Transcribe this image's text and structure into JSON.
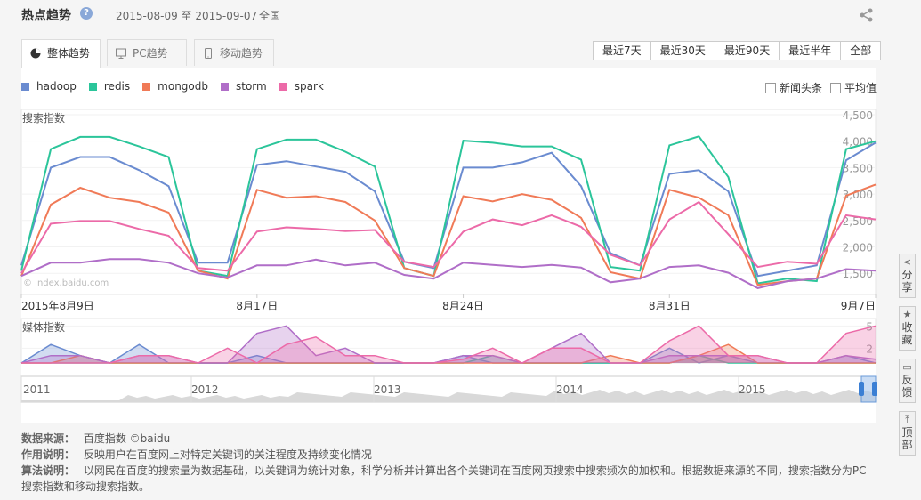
{
  "header": {
    "title": "热点趋势",
    "help_icon": "?",
    "date_range": "2015-08-09 至 2015-09-07",
    "region": "全国"
  },
  "tabs": [
    {
      "label": "整体趋势",
      "icon": "pie-icon",
      "active": true
    },
    {
      "label": "PC趋势",
      "icon": "monitor-icon",
      "active": false
    },
    {
      "label": "移动趋势",
      "icon": "mobile-icon",
      "active": false
    }
  ],
  "ranges": [
    "最近7天",
    "最近30天",
    "最近90天",
    "最近半年",
    "全部"
  ],
  "checkboxes": {
    "news": "新闻头条",
    "average": "平均值"
  },
  "colors": {
    "hadoop": "#6a8bd0",
    "redis": "#2bc59a",
    "mongodb": "#f07a57",
    "storm": "#b06ec8",
    "spark": "#ec6aa8"
  },
  "chart_data": [
    {
      "type": "line",
      "ylabel": "搜索指数",
      "ylim": [
        1100,
        4600
      ],
      "yticks": [
        "4,500",
        "4,000",
        "3,500",
        "3,000",
        "2,500",
        "2,000",
        "1,500"
      ],
      "ytick_values": [
        4500,
        4000,
        3500,
        3000,
        2500,
        2000,
        1500
      ],
      "xtick_labels": [
        "2015年8月9日",
        "8月17日",
        "8月24日",
        "8月31日",
        "9月7日"
      ],
      "xtick_index": [
        0,
        8,
        15,
        22,
        29
      ],
      "watermark": "© index.baidu.com",
      "x": [
        "08-09",
        "08-10",
        "08-11",
        "08-12",
        "08-13",
        "08-14",
        "08-15",
        "08-16",
        "08-17",
        "08-18",
        "08-19",
        "08-20",
        "08-21",
        "08-22",
        "08-23",
        "08-24",
        "08-25",
        "08-26",
        "08-27",
        "08-28",
        "08-29",
        "08-30",
        "08-31",
        "09-01",
        "09-02",
        "09-03",
        "09-04",
        "09-05",
        "09-06",
        "09-07"
      ],
      "series": [
        {
          "name": "hadoop",
          "color": "#6a8bd0",
          "values": [
            1650,
            3500,
            3700,
            3700,
            3450,
            3150,
            1700,
            1700,
            3550,
            3620,
            3520,
            3420,
            3050,
            1720,
            1600,
            3500,
            3500,
            3600,
            3780,
            3150,
            1880,
            1650,
            3380,
            3450,
            3050,
            1450,
            1550,
            1650,
            3640,
            3970
          ]
        },
        {
          "name": "redis",
          "color": "#2bc59a",
          "values": [
            1550,
            3850,
            4080,
            4080,
            3900,
            3700,
            1550,
            1450,
            3850,
            4030,
            4030,
            3800,
            3520,
            1600,
            1450,
            4010,
            3970,
            3900,
            3900,
            3650,
            1620,
            1550,
            3920,
            4090,
            3320,
            1310,
            1400,
            1350,
            3850,
            4000
          ]
        },
        {
          "name": "mongodb",
          "color": "#f07a57",
          "values": [
            1450,
            2800,
            3120,
            2930,
            2850,
            2650,
            1550,
            1400,
            3080,
            2930,
            2960,
            2850,
            2500,
            1600,
            1450,
            2960,
            2860,
            3000,
            2890,
            2550,
            1520,
            1400,
            3080,
            2930,
            2600,
            1280,
            1350,
            1400,
            2970,
            3180
          ]
        },
        {
          "name": "storm",
          "color": "#b06ec8",
          "values": [
            1450,
            1700,
            1700,
            1770,
            1770,
            1700,
            1500,
            1420,
            1650,
            1650,
            1760,
            1650,
            1700,
            1470,
            1400,
            1700,
            1660,
            1620,
            1660,
            1610,
            1330,
            1400,
            1620,
            1650,
            1510,
            1220,
            1350,
            1400,
            1580,
            1550
          ]
        },
        {
          "name": "spark",
          "color": "#ec6aa8",
          "values": [
            1500,
            2440,
            2490,
            2490,
            2340,
            2210,
            1600,
            1550,
            2290,
            2370,
            2340,
            2300,
            2320,
            1720,
            1620,
            2290,
            2520,
            2410,
            2600,
            2380,
            1850,
            1650,
            2520,
            2850,
            2240,
            1620,
            1720,
            1680,
            2600,
            2520
          ]
        }
      ]
    },
    {
      "type": "area",
      "ylabel": "媒体指数",
      "ylim": [
        0,
        6
      ],
      "yticks": [
        "5",
        "2"
      ],
      "ytick_values": [
        5,
        2
      ],
      "x": [
        "08-09",
        "08-10",
        "08-11",
        "08-12",
        "08-13",
        "08-14",
        "08-15",
        "08-16",
        "08-17",
        "08-18",
        "08-19",
        "08-20",
        "08-21",
        "08-22",
        "08-23",
        "08-24",
        "08-25",
        "08-26",
        "08-27",
        "08-28",
        "08-29",
        "08-30",
        "08-31",
        "09-01",
        "09-02",
        "09-03",
        "09-04",
        "09-05",
        "09-06",
        "09-07"
      ],
      "series": [
        {
          "name": "hadoop",
          "color": "#6a8bd0",
          "values": [
            0,
            2.5,
            1,
            0,
            2.5,
            0,
            0,
            0,
            1,
            0,
            0,
            0,
            0,
            0,
            0,
            1,
            0,
            0,
            0,
            0,
            0,
            0,
            2,
            0,
            1,
            0,
            0,
            0,
            1,
            0
          ]
        },
        {
          "name": "redis",
          "color": "#2bc59a",
          "values": [
            0,
            0,
            0,
            0,
            0,
            0,
            0,
            0,
            0,
            0,
            0,
            0,
            0,
            0,
            0,
            0,
            1,
            0,
            0,
            0,
            0,
            0,
            0,
            1,
            0,
            0,
            0,
            0,
            0,
            0
          ]
        },
        {
          "name": "mongodb",
          "color": "#f07a57",
          "values": [
            0,
            0,
            1,
            0,
            0,
            0,
            0,
            0,
            0,
            0,
            0,
            0,
            0,
            0,
            0,
            0,
            0,
            0,
            0,
            0,
            1,
            0,
            0,
            1,
            2.5,
            0,
            0,
            0,
            0,
            0
          ]
        },
        {
          "name": "storm",
          "color": "#b06ec8",
          "values": [
            0,
            1,
            1,
            0,
            1,
            1,
            0,
            0,
            4,
            5,
            1,
            2,
            0,
            0,
            0,
            1,
            1,
            0,
            2,
            4,
            0,
            0,
            1,
            1,
            1,
            1,
            0,
            0,
            1,
            0.5
          ]
        },
        {
          "name": "spark",
          "color": "#ec6aa8",
          "values": [
            0,
            0,
            0,
            0,
            1,
            1,
            0,
            2,
            0,
            2.5,
            3.5,
            1,
            1,
            0,
            0,
            0.5,
            2,
            0,
            2,
            2,
            0,
            0,
            3,
            5,
            1,
            1,
            0,
            0,
            4,
            5
          ]
        }
      ]
    }
  ],
  "timeline": {
    "labels": [
      "2011",
      "2012",
      "2013",
      "2014",
      "2015"
    ]
  },
  "info": {
    "source_label": "数据来源：",
    "source_value": "百度指数 ©baidu",
    "usage_label": "作用说明：",
    "usage_value": "反映用户在百度网上对特定关键词的关注程度及持续变化情况",
    "algo_label": "算法说明：",
    "algo_line1": "以网民在百度的搜索量为数据基础，以关键词为统计对象，科学分析并计算出各个关键词在百度网页搜索中搜索频次的加权和。根据数据来源的不同，搜索指数分为PC",
    "algo_line2": "搜索指数和移动搜索指数。"
  },
  "side_tools": [
    {
      "label": "分享",
      "icon": "share-icon"
    },
    {
      "label": "收藏",
      "icon": "star-icon"
    },
    {
      "label": "反馈",
      "icon": "feedback-icon"
    },
    {
      "label": "顶部",
      "icon": "top-icon"
    }
  ]
}
